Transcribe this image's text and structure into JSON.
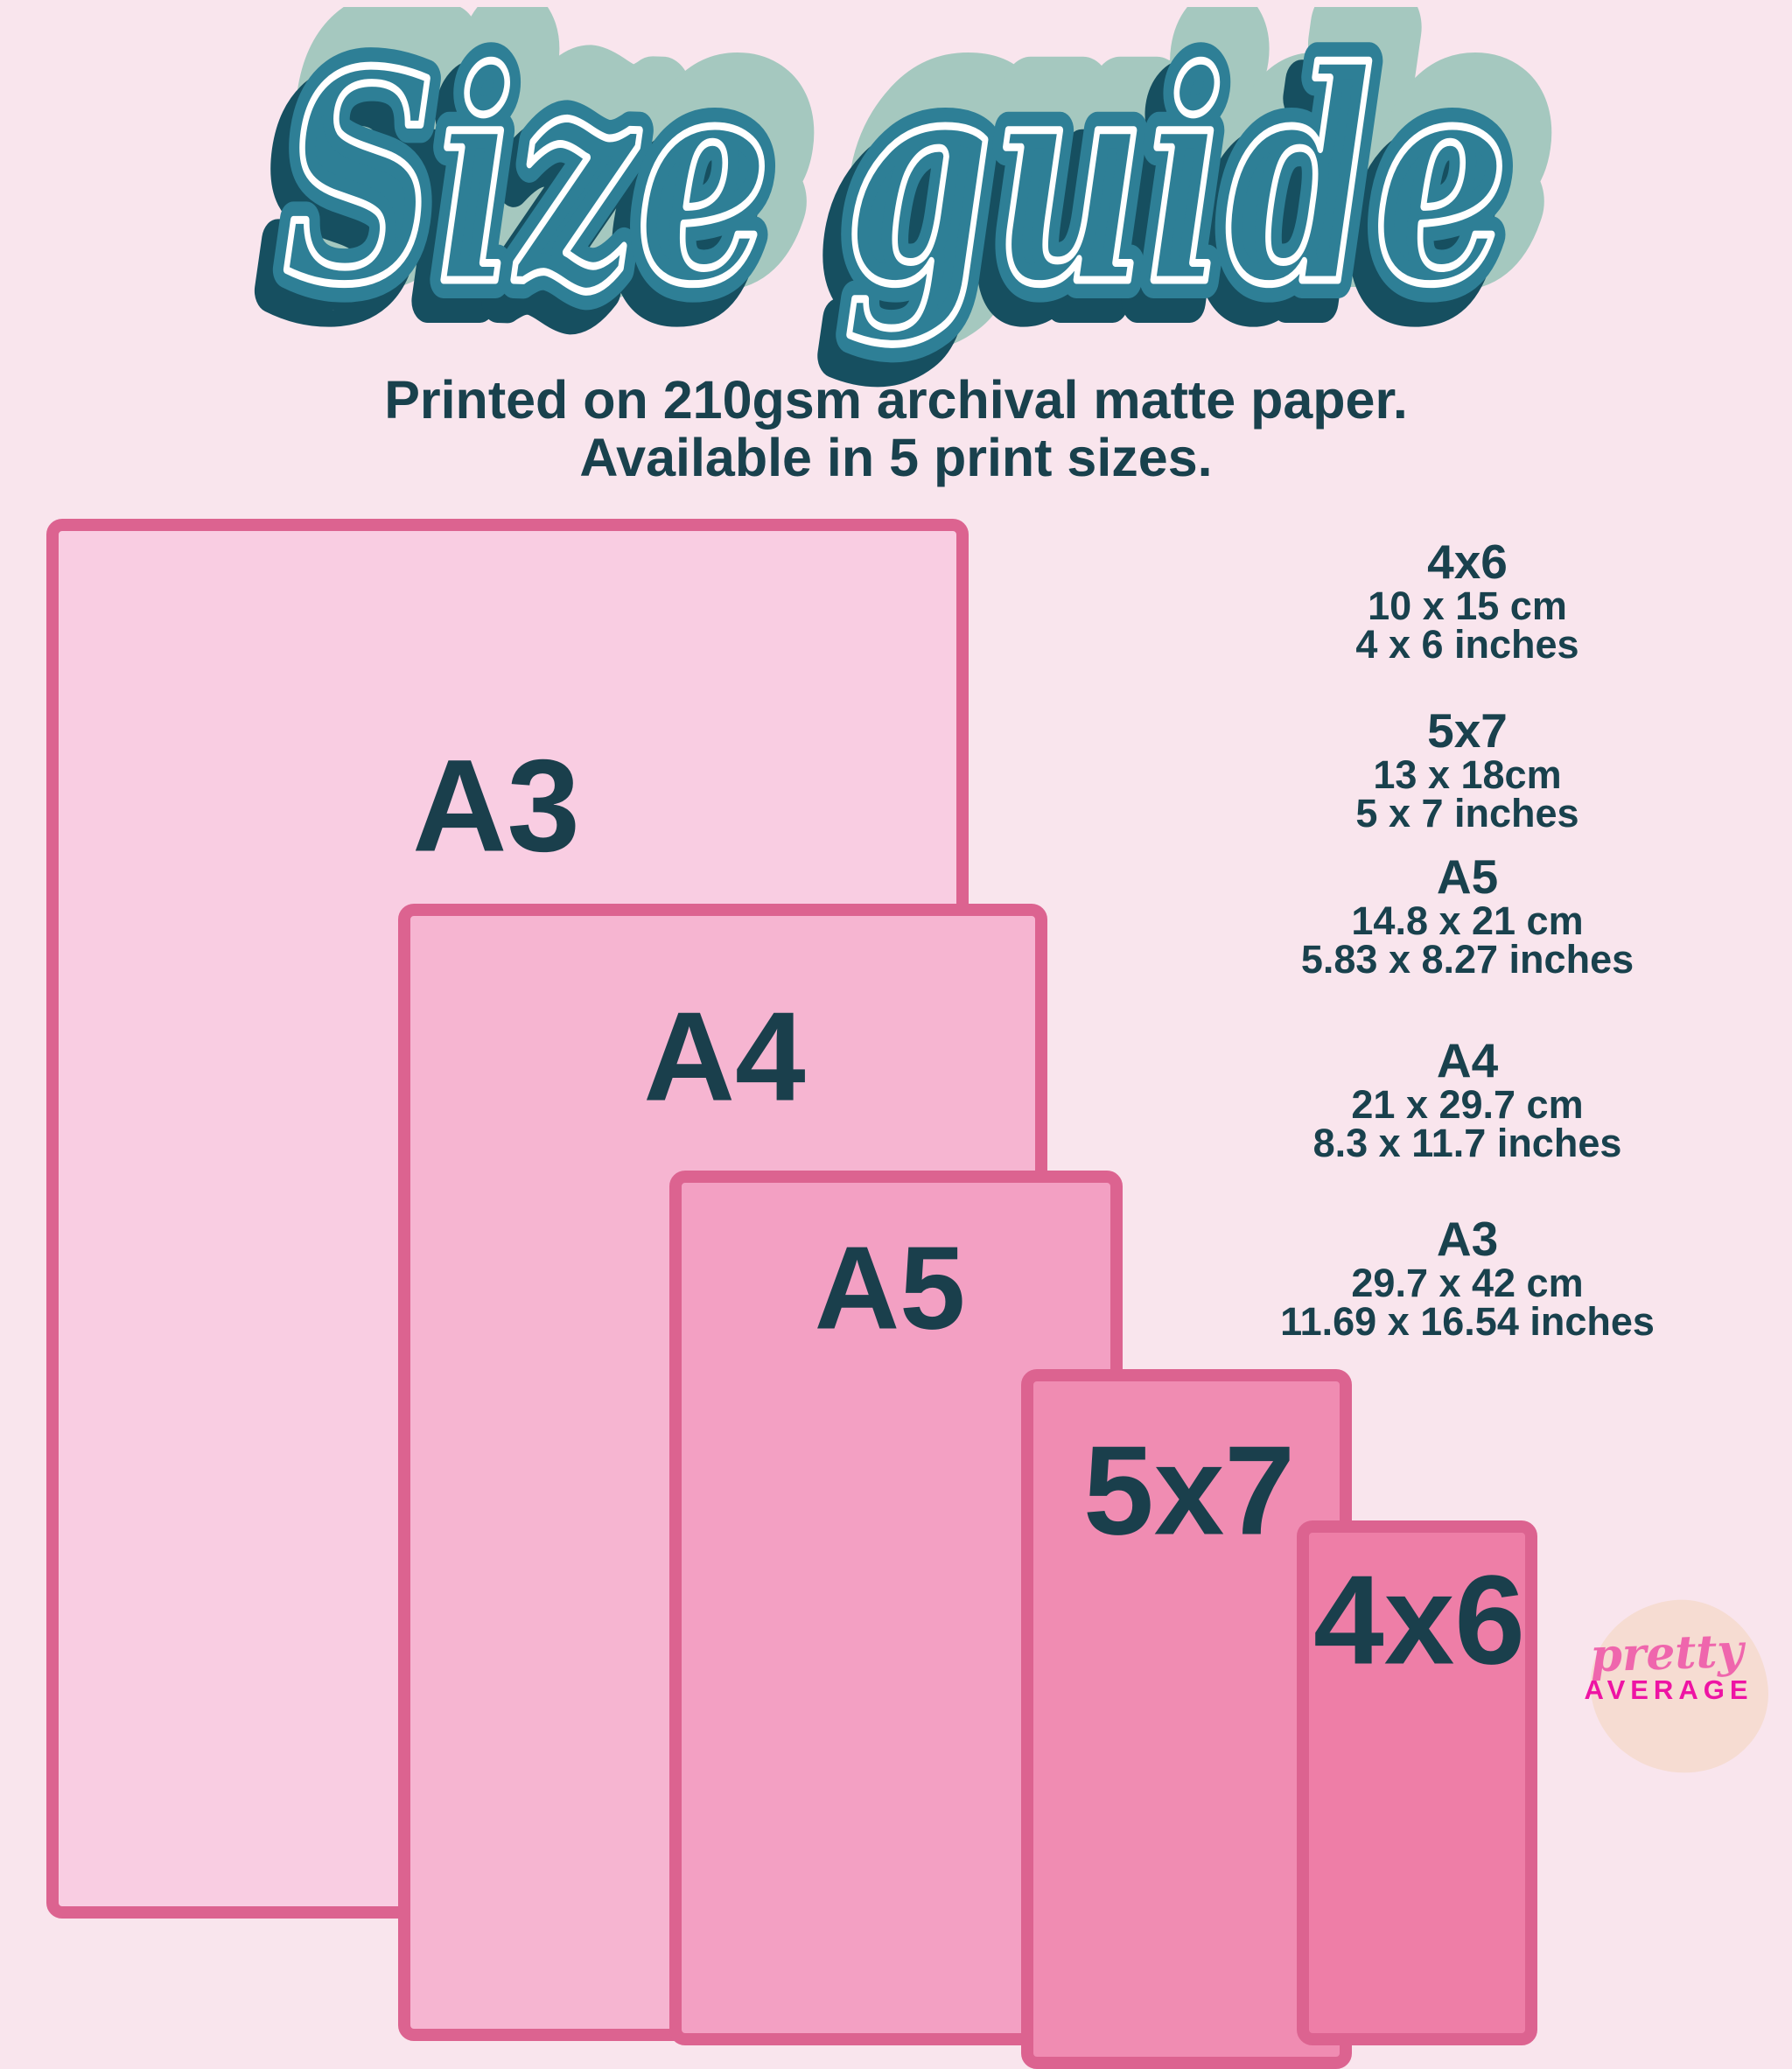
{
  "title": {
    "text": "Size guide"
  },
  "subtitle": {
    "line1": "Printed on 210gsm archival matte paper.",
    "line2": "Available in 5 print sizes."
  },
  "papers": [
    {
      "key": "a3",
      "label": "A3"
    },
    {
      "key": "a4",
      "label": "A4"
    },
    {
      "key": "a5",
      "label": "A5"
    },
    {
      "key": "5x7",
      "label": "5x7"
    },
    {
      "key": "4x6",
      "label": "4x6"
    }
  ],
  "size_list": {
    "groups": [
      {
        "name": "4x6",
        "metric": "10 x 15 cm",
        "imperial": "4 x 6 inches"
      },
      {
        "name": "5x7",
        "metric": "13 x 18cm",
        "imperial": "5 x 7 inches"
      },
      {
        "name": "A5",
        "metric": "14.8 x 21 cm",
        "imperial": "5.83 x 8.27 inches"
      },
      {
        "name": "A4",
        "metric": "21 x 29.7 cm",
        "imperial": "8.3 x 11.7 inches"
      },
      {
        "name": "A3",
        "metric": "29.7 x 42 cm",
        "imperial": "11.69 x 16.54 inches"
      }
    ]
  },
  "logo": {
    "script": "pretty",
    "caps": "AVERAGE"
  },
  "colors": {
    "background": "#f9e5ed",
    "title_teal": "#2e7f96",
    "title_dark_shadow": "#164f60",
    "title_sage_shadow": "#a5c8bf",
    "text_dark_teal": "#19414d",
    "paper_border": "#dc6390",
    "paper_fill_a3": "#f9cde2",
    "paper_fill_a4": "#f6b5d1",
    "paper_fill_a5": "#f3a0c3",
    "paper_fill_5x7": "#f08cb2",
    "paper_fill_4x6": "#ee7ea7",
    "logo_blob": "#f6dcd2",
    "logo_script_pink": "#ef66ad",
    "logo_caps_magenta": "#ee14a4"
  }
}
